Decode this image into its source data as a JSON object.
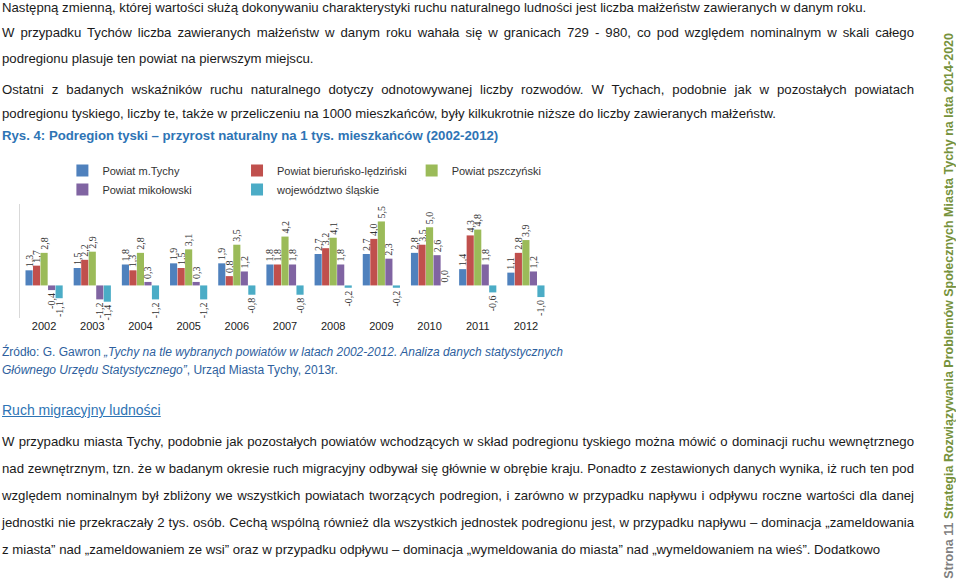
{
  "paragraph_1": "Następną zmienną, której wartości służą dokonywaniu charakterystyki ruchu naturalnego ludności jest liczba małżeństw zawieranych w danym roku.",
  "paragraph_2": "W przypadku Tychów liczba zawieranych małżeństw w danym roku wahała się w granicach  729 - 980, co pod względem nominalnym w skali całego podregionu plasuje ten powiat na pierwszym miejscu.",
  "paragraph_3": "Ostatni z badanych wskaźników ruchu naturalnego dotyczy odnotowywanej liczby rozwodów. W Tychach, podobnie jak w pozostałych powiatach podregionu tyskiego, liczby te, także w przeliczeniu na 1000 mieszkańców, były kilkukrotnie niższe do liczby zawieranych małżeństw.",
  "figure_caption": "Rys. 4: Podregion tyski – przyrost naturalny na 1 tys. mieszkańców (2002-2012)",
  "chart_data": {
    "type": "bar",
    "categories": [
      "2002",
      "2003",
      "2004",
      "2005",
      "2006",
      "2007",
      "2008",
      "2009",
      "2010",
      "2011",
      "2012"
    ],
    "series": [
      {
        "name": "Powiat m.Tychy",
        "color": "#4f81bd",
        "values": [
          1.3,
          1.5,
          1.8,
          1.9,
          1.9,
          1.8,
          2.7,
          2.7,
          2.8,
          1.4,
          1.1
        ],
        "value_labels": [
          "1,3",
          "1,5",
          "1,8",
          "1,9",
          "1,9",
          "1,8",
          "2,7",
          "2,7",
          "2,8",
          "1,4",
          "1,1"
        ]
      },
      {
        "name": "Powiat bieruńsko-lędziński",
        "color": "#c0504d",
        "values": [
          1.7,
          2.2,
          1.3,
          1.5,
          0.8,
          1.8,
          3.2,
          4.0,
          3.5,
          4.3,
          2.8
        ],
        "value_labels": [
          "1,7",
          "2,2",
          "1,3",
          "1,5",
          "0,8",
          "1,8",
          "3,2",
          "4,0",
          "3,5",
          "4,3",
          "2,8"
        ]
      },
      {
        "name": "Powiat pszczyński",
        "color": "#9bbb59",
        "values": [
          2.8,
          2.9,
          2.8,
          3.1,
          3.5,
          4.2,
          4.1,
          5.5,
          5.0,
          4.8,
          3.9
        ],
        "value_labels": [
          "2,8",
          "2,9",
          "2,8",
          "3,1",
          "3,5",
          "4,2",
          "4,1",
          "5,5",
          "5,0",
          "4,8",
          "3,9"
        ]
      },
      {
        "name": "Powiat mikołowski",
        "color": "#8064a2",
        "values": [
          -0.4,
          -1.2,
          0.3,
          0.3,
          1.2,
          1.8,
          1.8,
          2.3,
          2.6,
          1.8,
          1.2
        ],
        "value_labels": [
          "-0,4",
          "-1,2",
          "0,3",
          "0,3",
          "1,2",
          "1,8",
          "1,8",
          "2,3",
          "2,6",
          "1,8",
          "1,2"
        ]
      },
      {
        "name": "województwo śląskie",
        "color": "#4bacc6",
        "values": [
          -1.1,
          -1.4,
          -1.2,
          -1.2,
          -0.8,
          -0.8,
          -0.2,
          -0.2,
          0.0,
          -0.6,
          -1.0
        ],
        "value_labels": [
          "-1,1",
          "-1,4",
          "-1,2",
          "-1,2",
          "-0,8",
          "-0,8",
          "-0,2",
          "-0,2",
          "0,0",
          "-0,6",
          "-1,0"
        ]
      }
    ],
    "ylim": [
      -2.8,
      7
    ],
    "data_labels": true,
    "tick_labels": "x",
    "legend": "top"
  },
  "source": {
    "prefix": "Źródło: G. Gawron ",
    "title": "„Tychy na tle wybranych powiatów w latach 2002-2012. Analiza danych statystycznych Głównego Urzędu Statystycznego”",
    "suffix": ", Urząd Miasta Tychy, 2013r."
  },
  "section_heading": "Ruch migracyjny ludności",
  "paragraph_4": "W przypadku miasta Tychy, podobnie jak pozostałych powiatów wchodzących w skład podregionu tyskiego można mówić o dominacji ruchu wewnętrznego nad zewnętrznym, tzn. że w badanym okresie ruch migracyjny odbywał się głównie w obrębie kraju. Ponadto z zestawionych danych wynika, iż ruch ten pod względem nominalnym był zbliżony we wszystkich powiatach tworzących podregion, i zarówno w przypadku napływu i odpływu roczne wartości dla danej jednostki nie przekraczały 2 tys. osób. Cechą wspólną również dla wszystkich jednostek podregionu jest, w przypadku napływu – dominacja „zameldowania z miasta” nad „zameldowaniem ze wsi” oraz  w przypadku odpływu – dominacja „wymeldowania do miasta” nad „wymeldowaniem na wieś”. Dodatkowo",
  "sidebar": {
    "page": "Strona 11",
    "title": "Strategia Rozwiązywania Problemów Społecznych Miasta Tychy na lata 2014-2020"
  }
}
